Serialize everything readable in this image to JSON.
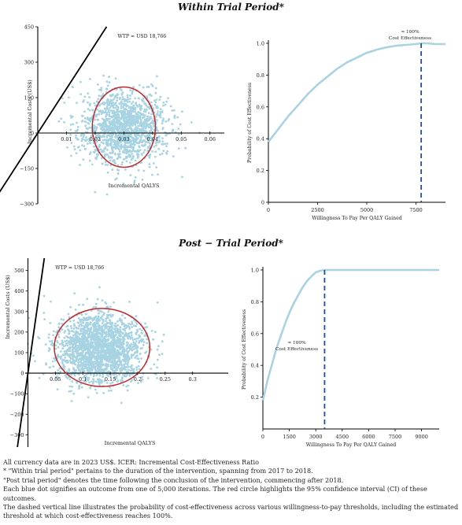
{
  "sections": [
    {
      "title": "Within Trial Period*",
      "scatter": {
        "type": "scatter",
        "xlabel": "Incremental QALYS",
        "ylabel": "Incremental Costs (US$)",
        "x_ticks": [
          "0.01",
          "0.02",
          "0.03",
          "0.04",
          "0.05",
          "0.06"
        ],
        "y_ticks": [
          "450",
          "300",
          "150",
          "0",
          "−150",
          "−300"
        ],
        "xlim": [
          0,
          0.065
        ],
        "ylim": [
          -300,
          450
        ],
        "wtp_label": "WTP = USD 18,766",
        "wtp_slope": 18766,
        "cloud": {
          "center": [
            0.03,
            25
          ],
          "spread": [
            0.0065,
            70
          ],
          "points": 1500
        },
        "ci_ellipse": {
          "center": [
            0.03,
            25
          ],
          "radii": [
            0.011,
            170
          ]
        },
        "colors": {
          "points": "#a7d3e2",
          "ellipse": "#c0282d",
          "line": "#000000"
        }
      },
      "ceac": {
        "type": "line",
        "xlabel": "Willingness To Pay Per QALY Gained",
        "ylabel": "Probability of Cost Effectiveness",
        "x_ticks": [
          "0",
          "2500",
          "5000",
          "7500"
        ],
        "y_ticks": [
          "0",
          "0.2",
          "0.4",
          "0.6",
          "0.8",
          "1.0"
        ],
        "xlim": [
          0,
          9000
        ],
        "ylim": [
          0,
          1
        ],
        "x": [
          0,
          500,
          1000,
          1500,
          2000,
          2500,
          3000,
          3500,
          4000,
          4500,
          5000,
          5500,
          6000,
          6500,
          7000,
          7500,
          7766,
          8000,
          8500,
          9000
        ],
        "y": [
          0.38,
          0.46,
          0.54,
          0.61,
          0.68,
          0.74,
          0.79,
          0.84,
          0.88,
          0.91,
          0.94,
          0.96,
          0.975,
          0.985,
          0.99,
          0.995,
          1.0,
          1.0,
          0.995,
          0.995
        ],
        "threshold_x": 7766,
        "threshold_label": [
          "≈ 100%",
          "Cost Effectiveness"
        ],
        "colors": {
          "line": "#a9d2e3",
          "threshold": "#1f4e9c"
        }
      }
    },
    {
      "title": "Post − Trial Period*",
      "scatter": {
        "type": "scatter",
        "xlabel": "Incremental QALYS",
        "ylabel": "Incremental Costs (US$)",
        "x_ticks": [
          "0.05",
          "0.1",
          "0.15",
          "0.2",
          "0.25",
          "0.3"
        ],
        "y_ticks": [
          "500",
          "400",
          "300",
          "200",
          "100",
          "0",
          "−100",
          "−200",
          "−300"
        ],
        "xlim": [
          -0.005,
          0.365
        ],
        "ylim": [
          -360,
          560
        ],
        "wtp_label": "WTP = USD 18,766",
        "wtp_slope": 18766,
        "cloud": {
          "center": [
            0.13,
            120
          ],
          "spread": [
            0.036,
            75
          ],
          "points": 2000
        },
        "ci_ellipse": {
          "center": [
            0.135,
            125
          ],
          "radii": [
            0.087,
            190
          ]
        },
        "colors": {
          "points": "#a7d3e2",
          "ellipse": "#c0282d",
          "line": "#000000"
        }
      },
      "ceac": {
        "type": "line",
        "xlabel": "Willingness To Pay Per QALY Gained",
        "ylabel": "Probability of Cost Effectiveness",
        "x_ticks": [
          "0",
          "1500",
          "3000",
          "4500",
          "6000",
          "7500",
          "9000"
        ],
        "y_ticks": [
          "0.2",
          "0.4",
          "0.6",
          "0.8",
          "1.0"
        ],
        "xlim": [
          0,
          10000
        ],
        "ylim": [
          0,
          1
        ],
        "x": [
          0,
          250,
          500,
          750,
          1000,
          1250,
          1500,
          1750,
          2000,
          2250,
          2500,
          2750,
          3000,
          3250,
          3500,
          3768,
          4500,
          6000,
          8000,
          10000
        ],
        "y": [
          0.18,
          0.3,
          0.4,
          0.5,
          0.58,
          0.66,
          0.73,
          0.79,
          0.84,
          0.89,
          0.93,
          0.96,
          0.985,
          0.995,
          1.0,
          1.0,
          1.0,
          1.0,
          1.0,
          1.0
        ],
        "threshold_x": 3500,
        "threshold_label": [
          "≈ 100%",
          "Cost Effectiveness"
        ],
        "colors": {
          "line": "#a9d2e3",
          "threshold": "#1f4e9c"
        }
      }
    }
  ],
  "footnotes": [
    "All currency data are in 2023 US$. ICER: Incremental Cost-Effectiveness Ratio",
    "* \"Within trial period\" pertains to the duration of the intervention, spanning from 2017 to 2018.",
    "\"Post trial period\" denotes the time following the conclusion of the intervention, commencing after 2018.",
    "Each blue dot signifies an outcome from one of 5,000 iterations. The red circle highlights the 95% confidence interval (CI) of these outcomes.",
    "The dashed vertical line illustrates the probability of cost-effectiveness across various willingness-to-pay thresholds, including the estimated threshold at which cost-effectiveness reaches 100%."
  ]
}
